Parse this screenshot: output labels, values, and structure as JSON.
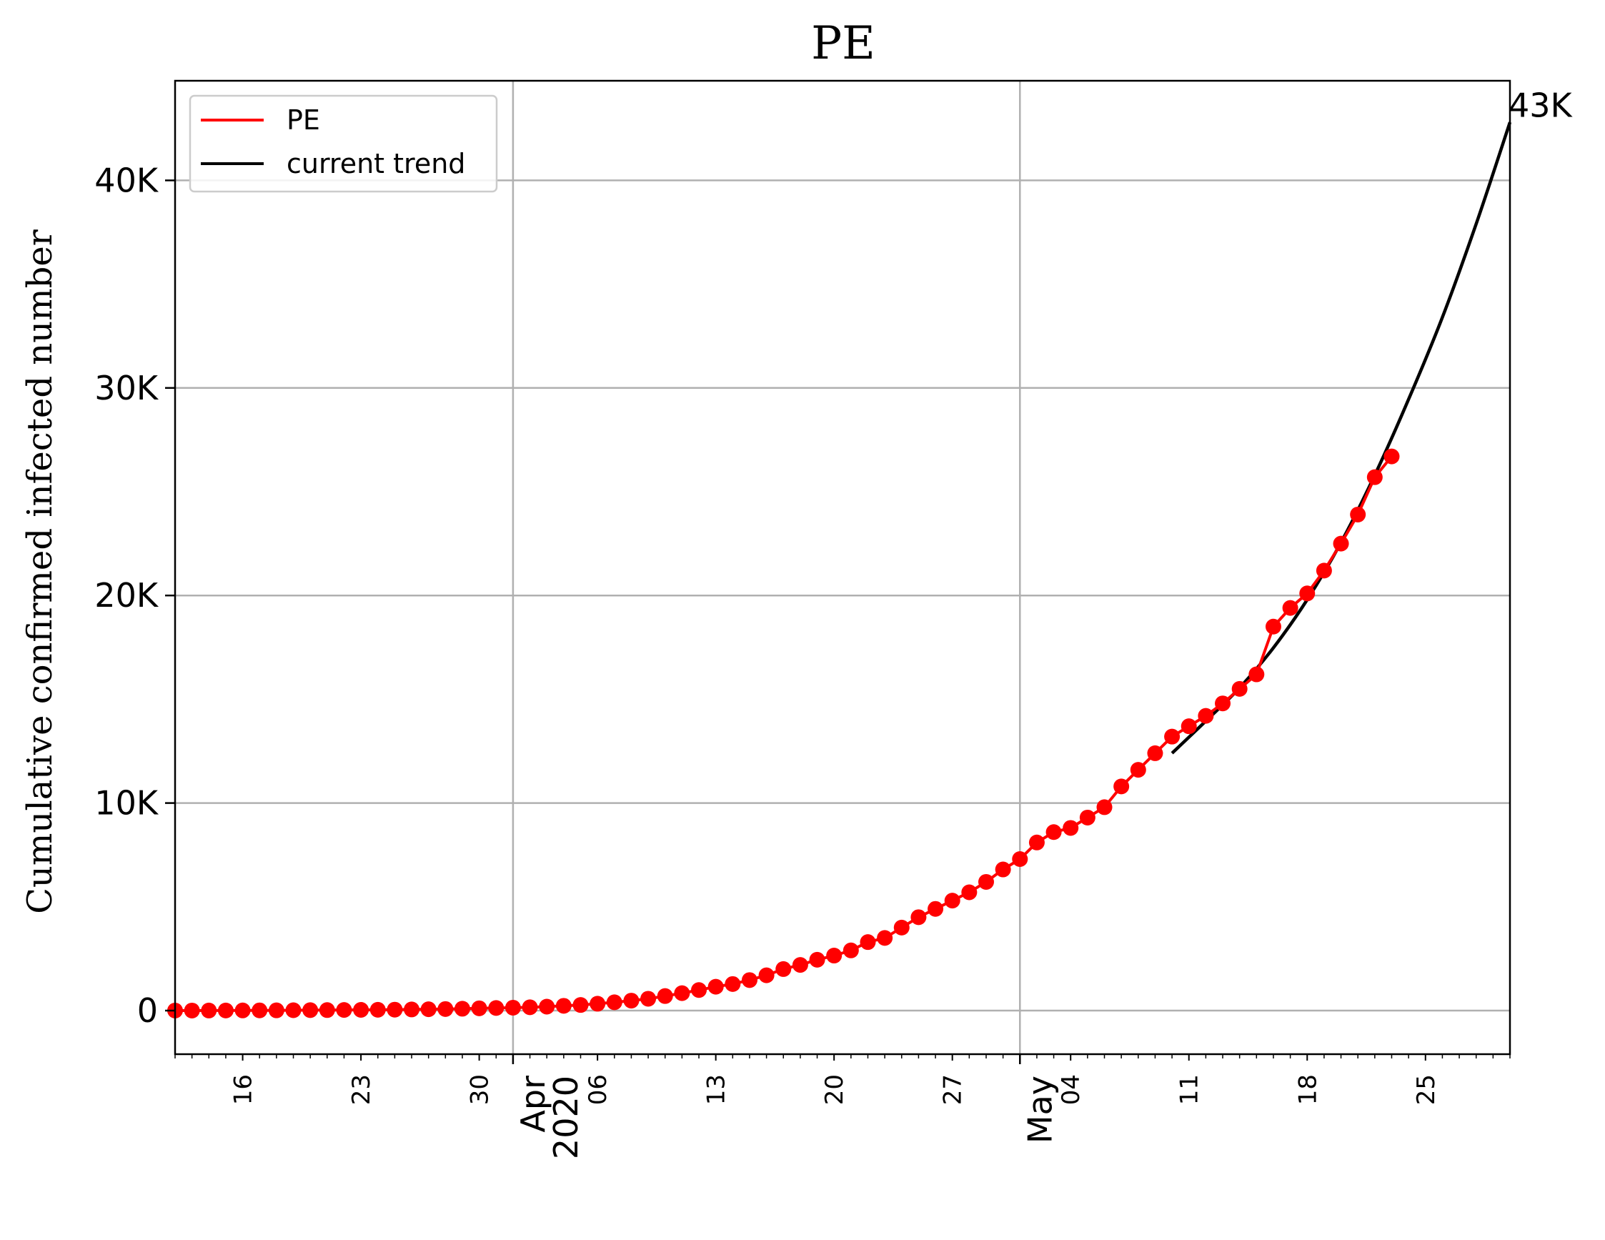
{
  "chart_data": {
    "type": "line",
    "title": "PE",
    "xlabel": "",
    "ylabel": "Cumulative confirmed infected number",
    "xlim": [
      "2020-03-12",
      "2020-05-30"
    ],
    "ylim": [
      -2100,
      44800
    ],
    "yticks": [
      {
        "value": 0,
        "label": "0"
      },
      {
        "value": 10000,
        "label": "10K"
      },
      {
        "value": 20000,
        "label": "20K"
      },
      {
        "value": 30000,
        "label": "30K"
      },
      {
        "value": 40000,
        "label": "40K"
      }
    ],
    "xticks_major": [
      {
        "date": "2020-04-01",
        "label": "Apr\n2020"
      },
      {
        "date": "2020-05-01",
        "label": "May"
      }
    ],
    "xticks_minor": [
      {
        "date": "2020-03-16",
        "label": "16"
      },
      {
        "date": "2020-03-23",
        "label": "23"
      },
      {
        "date": "2020-03-30",
        "label": "30"
      },
      {
        "date": "2020-04-06",
        "label": "06"
      },
      {
        "date": "2020-04-13",
        "label": "13"
      },
      {
        "date": "2020-04-20",
        "label": "20"
      },
      {
        "date": "2020-04-27",
        "label": "27"
      },
      {
        "date": "2020-05-04",
        "label": "04"
      },
      {
        "date": "2020-05-11",
        "label": "11"
      },
      {
        "date": "2020-05-18",
        "label": "18"
      },
      {
        "date": "2020-05-25",
        "label": "25"
      }
    ],
    "grid": true,
    "legend": {
      "position": "top-left",
      "entries": [
        "PE",
        "current trend"
      ]
    },
    "series": [
      {
        "name": "PE",
        "color": "#ff0000",
        "marker": "circle",
        "x": [
          "2020-03-12",
          "2020-03-13",
          "2020-03-14",
          "2020-03-15",
          "2020-03-16",
          "2020-03-17",
          "2020-03-18",
          "2020-03-19",
          "2020-03-20",
          "2020-03-21",
          "2020-03-22",
          "2020-03-23",
          "2020-03-24",
          "2020-03-25",
          "2020-03-26",
          "2020-03-27",
          "2020-03-28",
          "2020-03-29",
          "2020-03-30",
          "2020-03-31",
          "2020-04-01",
          "2020-04-02",
          "2020-04-03",
          "2020-04-04",
          "2020-04-05",
          "2020-04-06",
          "2020-04-07",
          "2020-04-08",
          "2020-04-09",
          "2020-04-10",
          "2020-04-11",
          "2020-04-12",
          "2020-04-13",
          "2020-04-14",
          "2020-04-15",
          "2020-04-16",
          "2020-04-17",
          "2020-04-18",
          "2020-04-19",
          "2020-04-20",
          "2020-04-21",
          "2020-04-22",
          "2020-04-23",
          "2020-04-24",
          "2020-04-25",
          "2020-04-26",
          "2020-04-27",
          "2020-04-28",
          "2020-04-29",
          "2020-04-30",
          "2020-05-01",
          "2020-05-02",
          "2020-05-03",
          "2020-05-04",
          "2020-05-05",
          "2020-05-06",
          "2020-05-07",
          "2020-05-08",
          "2020-05-09",
          "2020-05-10",
          "2020-05-11",
          "2020-05-12",
          "2020-05-13",
          "2020-05-14",
          "2020-05-15",
          "2020-05-16",
          "2020-05-17",
          "2020-05-18",
          "2020-05-19",
          "2020-05-20",
          "2020-05-21",
          "2020-05-22",
          "2020-05-23"
        ],
        "y": [
          2,
          2,
          3,
          5,
          8,
          10,
          12,
          18,
          22,
          25,
          30,
          35,
          40,
          45,
          55,
          65,
          75,
          90,
          110,
          125,
          140,
          160,
          190,
          230,
          270,
          330,
          400,
          480,
          570,
          700,
          840,
          990,
          1150,
          1280,
          1470,
          1700,
          2000,
          2200,
          2450,
          2650,
          2900,
          3300,
          3500,
          4000,
          4500,
          4900,
          5300,
          5700,
          6200,
          6800,
          7300,
          8100,
          8600,
          8800,
          9300,
          9800,
          10800,
          11600,
          12400,
          13200,
          13700,
          14200,
          14800,
          15500,
          16200,
          18500,
          19400,
          20100,
          21200,
          22500,
          23900,
          25700,
          26700
        ]
      },
      {
        "name": "current trend",
        "color": "#000000",
        "marker": "none",
        "x": [
          "2020-05-10",
          "2020-05-12",
          "2020-05-14",
          "2020-05-16",
          "2020-05-18",
          "2020-05-20",
          "2020-05-22",
          "2020-05-24",
          "2020-05-26",
          "2020-05-28",
          "2020-05-30"
        ],
        "y": [
          12400,
          13950,
          15550,
          17480,
          19800,
          22550,
          25800,
          29450,
          33400,
          37900,
          42800
        ]
      }
    ],
    "annotations": [
      {
        "text": "43K",
        "x": "2020-05-30",
        "y": 43000
      }
    ]
  }
}
